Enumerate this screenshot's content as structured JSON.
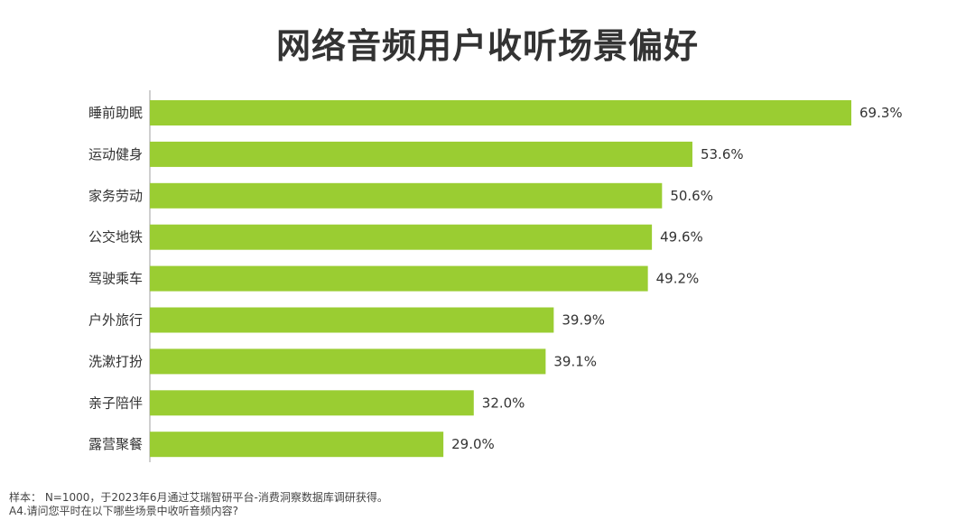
{
  "chart_data": {
    "type": "bar",
    "orientation": "horizontal",
    "title": "网络音频用户收听场景偏好",
    "categories": [
      "睡前助眠",
      "运动健身",
      "家务劳动",
      "公交地铁",
      "驾驶乘车",
      "户外旅行",
      "洗漱打扮",
      "亲子陪伴",
      "露营聚餐"
    ],
    "values": [
      69.3,
      53.6,
      50.6,
      49.6,
      49.2,
      39.9,
      39.1,
      32.0,
      29.0
    ],
    "value_labels": [
      "69.3%",
      "53.6%",
      "50.6%",
      "49.6%",
      "49.2%",
      "39.9%",
      "39.1%",
      "32.0%",
      "29.0%"
    ],
    "unit": "%",
    "xlabel": "",
    "ylabel": "",
    "xlim": [
      0,
      69.3
    ],
    "grid": false,
    "legend": "none",
    "bar_color": "#9ACD32"
  },
  "footnotes": {
    "sample": "样本： N=1000，于2023年6月通过艾瑞智研平台-消费洞察数据库调研获得。",
    "question": "A4.请问您平时在以下哪些场景中收听音频内容?"
  },
  "colors": {
    "bar": "#9ACD32",
    "axis": "#BFBFBF",
    "text": "#333333"
  }
}
